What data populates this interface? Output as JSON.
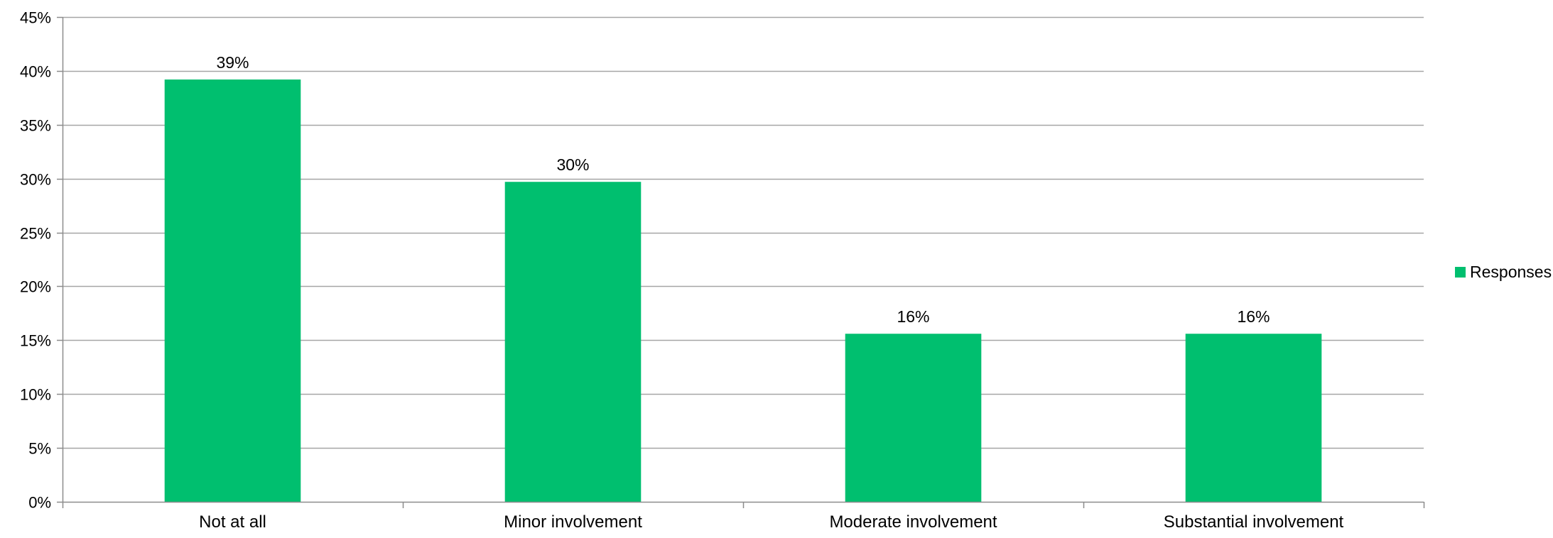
{
  "chart_data": {
    "type": "bar",
    "title": "",
    "xlabel": "",
    "ylabel": "",
    "categories": [
      "Not at all",
      "Minor involvement",
      "Moderate involvement",
      "Substantial involvement"
    ],
    "series": [
      {
        "name": "Responses",
        "values": [
          39.2,
          29.7,
          15.6,
          15.6
        ],
        "data_labels": [
          "39%",
          "30%",
          "16%",
          "16%"
        ],
        "color": "#00BF6F"
      }
    ],
    "ylim": [
      0,
      45
    ],
    "yticks": [
      0,
      5,
      10,
      15,
      20,
      25,
      30,
      35,
      40,
      45
    ],
    "ytick_labels": [
      "0%",
      "5%",
      "10%",
      "15%",
      "20%",
      "25%",
      "30%",
      "35%",
      "40%",
      "45%"
    ],
    "grid": true,
    "legend": {
      "position": "right",
      "entries": [
        "Responses"
      ]
    },
    "colors": {
      "bar": "#00BF6F",
      "grid": "#A6A6A6",
      "axis": "#8C8C8C"
    }
  }
}
